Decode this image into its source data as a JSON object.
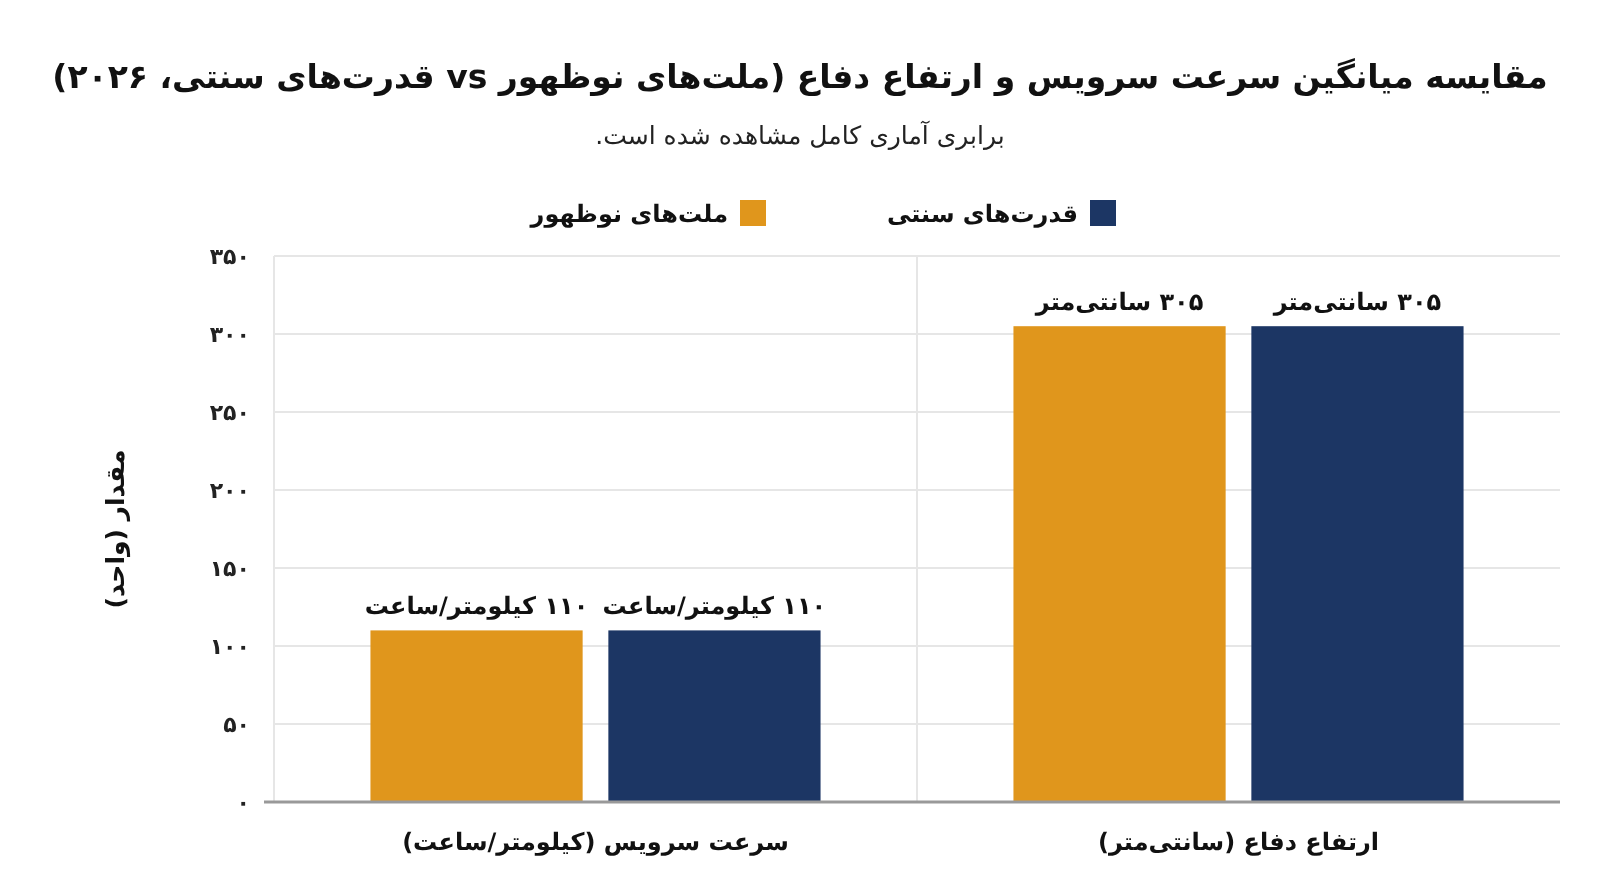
{
  "chart_data": {
    "type": "bar",
    "title": "مقایسه میانگین سرعت سرویس و ارتفاع دفاع (ملت‌های نوظهور vs قدرت‌های سنتی، ۲۰۲۶)",
    "subtitle": "برابری آماری کامل مشاهده شده است.",
    "ylabel": "مقدار (واحد)",
    "categories": [
      "سرعت سرویس (کیلومتر/ساعت)",
      "ارتفاع دفاع (سانتی‌متر)"
    ],
    "series": [
      {
        "name": "ملت‌های نوظهور",
        "color": "#e0961c",
        "values": [
          110,
          305
        ],
        "value_labels": [
          "۱۱۰ کیلومتر/ساعت",
          "۳۰۵ سانتی‌متر"
        ]
      },
      {
        "name": "قدرت‌های سنتی",
        "color": "#1c3664",
        "values": [
          110,
          305
        ],
        "value_labels": [
          "۱۱۰ کیلومتر/ساعت",
          "۳۰۵ سانتی‌متر"
        ]
      }
    ],
    "ylim": [
      0,
      350
    ],
    "yticks": [
      {
        "value": 0,
        "label": "۰"
      },
      {
        "value": 50,
        "label": "۵۰"
      },
      {
        "value": 100,
        "label": "۱۰۰"
      },
      {
        "value": 150,
        "label": "۱۵۰"
      },
      {
        "value": 200,
        "label": "۲۰۰"
      },
      {
        "value": 250,
        "label": "۲۵۰"
      },
      {
        "value": 300,
        "label": "۳۰۰"
      },
      {
        "value": 350,
        "label": "۳۵۰"
      }
    ],
    "grid": true,
    "legend": "top"
  }
}
